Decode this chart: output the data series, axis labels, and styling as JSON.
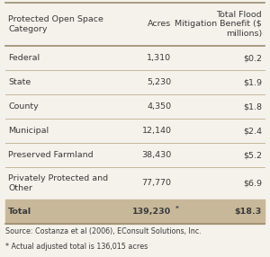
{
  "col_headers": [
    "Protected Open Space\nCategory",
    "Acres",
    "Total Flood\nMitigation Benefit ($\nmillions)"
  ],
  "rows": [
    [
      "Federal",
      "1,310",
      "$0.2"
    ],
    [
      "State",
      "5,230",
      "$1.9"
    ],
    [
      "County",
      "4,350",
      "$1.8"
    ],
    [
      "Municipal",
      "12,140",
      "$2.4"
    ],
    [
      "Preserved Farmland",
      "38,430",
      "$5.2"
    ],
    [
      "Privately Protected and\nOther",
      "77,770",
      "$6.9"
    ]
  ],
  "total_row": [
    "Total",
    "139,230",
    "$18.3"
  ],
  "footnotes": [
    "Source: Costanza et al (2006), EConsult Solutions, Inc.",
    "* Actual adjusted total is 136,015 acres"
  ],
  "bg_color": "#f5f2ec",
  "header_bg": "#f5f2ec",
  "data_row_bg": "#f5f2ec",
  "total_row_bg": "#c8b89a",
  "header_line_color": "#9c8c6e",
  "text_color": "#3a3a3a",
  "divider_color": "#c8b89a",
  "font_size": 6.8,
  "header_font_size": 6.8,
  "footnote_font_size": 5.8
}
